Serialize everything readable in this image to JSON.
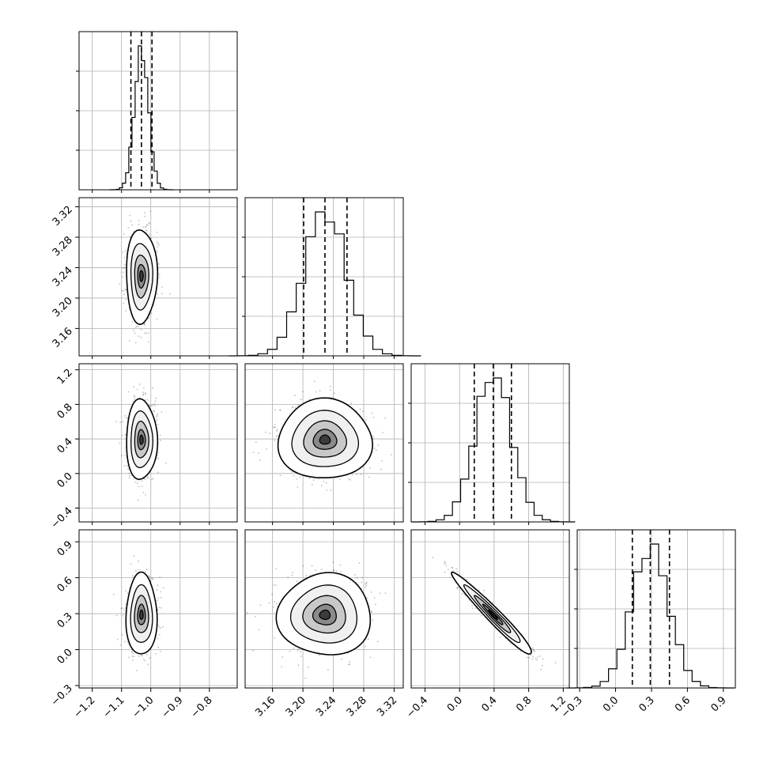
{
  "chart_data": {
    "type": "corner",
    "grid": true,
    "params": [
      {
        "xticks": [
          "−1.2",
          "−1.1",
          "−1.0",
          "−0.9",
          "−0.8"
        ],
        "tick_values": [
          -1.2,
          -1.1,
          -1.0,
          -0.9,
          -0.8
        ],
        "range": [
          -1.245,
          -0.705
        ],
        "quantiles": [
          -1.068,
          -1.032,
          -0.996
        ],
        "median": -1.032,
        "sd": 0.024
      },
      {
        "xticks": [
          "3.16",
          "3.20",
          "3.24",
          "3.28",
          "3.32"
        ],
        "tick_values": [
          3.16,
          3.2,
          3.24,
          3.28,
          3.32
        ],
        "range": [
          3.124,
          3.332
        ],
        "quantiles": [
          3.201,
          3.229,
          3.258
        ],
        "median": 3.229,
        "sd": 0.028
      },
      {
        "xticks": [
          "−0.4",
          "0.0",
          "0.4",
          "0.8",
          "1.2"
        ],
        "tick_values": [
          -0.4,
          0.0,
          0.4,
          0.8,
          1.2
        ],
        "range": [
          -0.56,
          1.27
        ],
        "quantiles": [
          0.17,
          0.39,
          0.6
        ],
        "median": 0.39,
        "sd": 0.21
      },
      {
        "xticks": [
          "−0.3",
          "0.0",
          "0.3",
          "0.6",
          "0.9"
        ],
        "tick_values": [
          -0.3,
          0.0,
          0.3,
          0.6,
          0.9
        ],
        "range": [
          -0.32,
          1.0
        ],
        "quantiles": [
          0.14,
          0.29,
          0.45
        ],
        "median": 0.29,
        "sd": 0.155
      }
    ],
    "correlations": [
      [
        1,
        0,
        0,
        0
      ],
      [
        0,
        1,
        0,
        0
      ],
      [
        0,
        0,
        1,
        -0.97
      ],
      [
        0,
        0,
        -0.97,
        1
      ]
    ],
    "colors": {
      "hist": "#000000",
      "scatter": "#000000",
      "grid": "#b0b0b0",
      "frame": "#000000"
    }
  }
}
